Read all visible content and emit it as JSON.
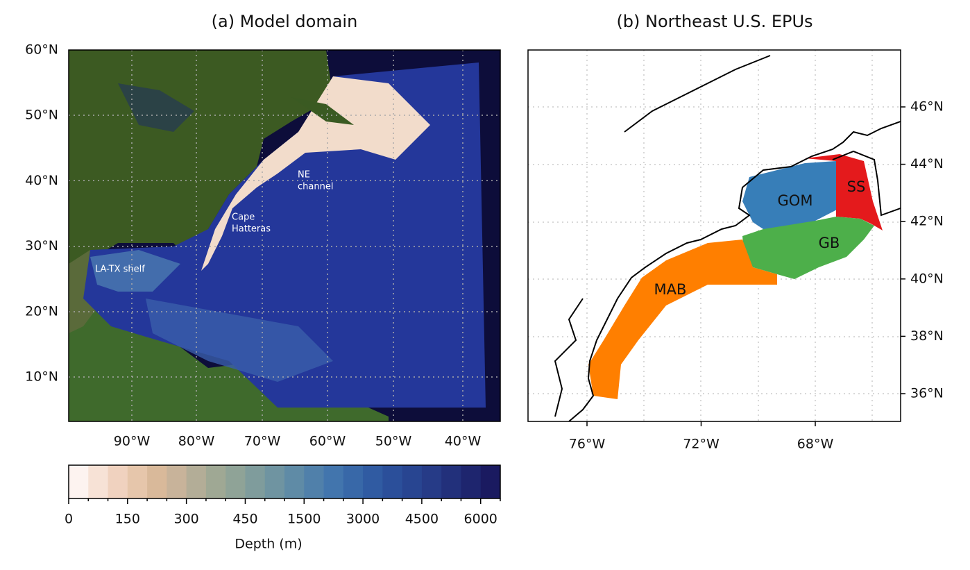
{
  "panel_a": {
    "title": "(a) Model domain",
    "lat_ticks": [
      "60°N",
      "50°N",
      "40°N",
      "30°N",
      "20°N",
      "10°N"
    ],
    "lon_ticks": [
      "90°W",
      "80°W",
      "70°W",
      "60°W",
      "50°W",
      "40°W"
    ],
    "annotations": [
      {
        "lines": [
          "NE",
          "channel"
        ]
      },
      {
        "lines": [
          "Cape",
          "Hatteras"
        ]
      },
      {
        "lines": [
          "LA-TX shelf"
        ]
      }
    ]
  },
  "colorbar": {
    "label": "Depth (m)",
    "ticks": [
      "0",
      "150",
      "300",
      "450",
      "1500",
      "3000",
      "4500",
      "6000"
    ],
    "colors": [
      "#fdf3f0",
      "#f7e2d6",
      "#f0d2bf",
      "#e6c6ab",
      "#d9b99a",
      "#c8b39a",
      "#b3ad97",
      "#9fa894",
      "#8fa397",
      "#7f9c9c",
      "#6f94a1",
      "#5f8ba6",
      "#5080aa",
      "#4275ad",
      "#3868a8",
      "#305ba2",
      "#2b4f9a",
      "#284591",
      "#263b87",
      "#22307b",
      "#1e256e",
      "#1a1a60"
    ]
  },
  "panel_b": {
    "title": "(b) Northeast U.S. EPUs",
    "lat_ticks": [
      "46°N",
      "44°N",
      "42°N",
      "40°N",
      "38°N",
      "36°N"
    ],
    "lon_ticks": [
      "76°W",
      "72°W",
      "68°W"
    ],
    "regions": [
      {
        "label": "GOM",
        "color": "#377eb8"
      },
      {
        "label": "SS",
        "color": "#e41a1c"
      },
      {
        "label": "GB",
        "color": "#4daf4a"
      },
      {
        "label": "MAB",
        "color": "#ff7f00"
      }
    ]
  }
}
